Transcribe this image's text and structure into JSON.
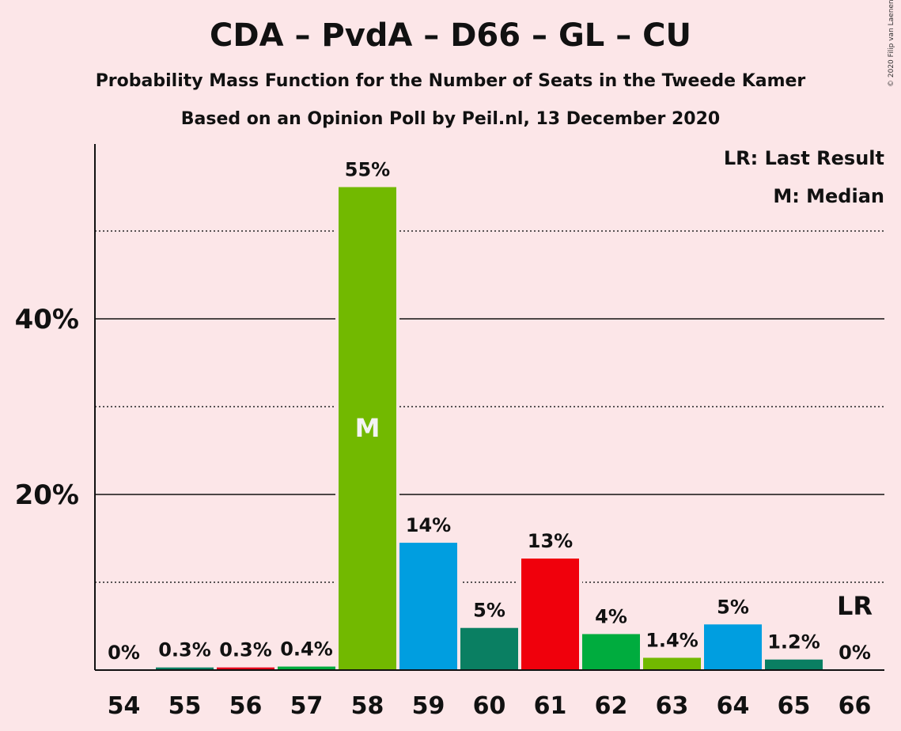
{
  "chart_data": {
    "type": "bar",
    "title": "CDA – PvdA – D66 – GL – CU",
    "subtitle": "Probability Mass Function for the Number of Seats in the Tweede Kamer",
    "subtitle2": "Based on an Opinion Poll by Peil.nl, 13 December 2020",
    "copyright": "© 2020 Filip van Laenen",
    "legend": [
      {
        "label": "LR: Last Result"
      },
      {
        "label": "M: Median"
      }
    ],
    "xlabel": "",
    "ylabel": "",
    "ylim": [
      0,
      60
    ],
    "yticks": [
      {
        "value": 20,
        "label": "20%"
      },
      {
        "value": 40,
        "label": "40%"
      }
    ],
    "dotted_gridlines": [
      10,
      30,
      50
    ],
    "solid_gridlines": [
      20,
      40
    ],
    "bars": [
      {
        "seats": "54",
        "value": 0.0,
        "label": "0%",
        "color": "#0a7f62"
      },
      {
        "seats": "55",
        "value": 0.3,
        "label": "0.3%",
        "color": "#0a7f62"
      },
      {
        "seats": "56",
        "value": 0.3,
        "label": "0.3%",
        "color": "#e3001a"
      },
      {
        "seats": "57",
        "value": 0.4,
        "label": "0.4%",
        "color": "#00ac3e"
      },
      {
        "seats": "58",
        "value": 55.0,
        "label": "55%",
        "color": "#72b900",
        "marker": "M"
      },
      {
        "seats": "59",
        "value": 14.5,
        "label": "14%",
        "color": "#009ee0"
      },
      {
        "seats": "60",
        "value": 4.8,
        "label": "5%",
        "color": "#0a7f62"
      },
      {
        "seats": "61",
        "value": 12.7,
        "label": "13%",
        "color": "#f0000c"
      },
      {
        "seats": "62",
        "value": 4.1,
        "label": "4%",
        "color": "#00ac3e"
      },
      {
        "seats": "63",
        "value": 1.4,
        "label": "1.4%",
        "color": "#72b900"
      },
      {
        "seats": "64",
        "value": 5.2,
        "label": "5%",
        "color": "#009ee0"
      },
      {
        "seats": "65",
        "value": 1.2,
        "label": "1.2%",
        "color": "#0a7f62"
      },
      {
        "seats": "66",
        "value": 0.0,
        "label": "0%",
        "color": "#0a7f62",
        "marker_above": "LR"
      }
    ]
  }
}
